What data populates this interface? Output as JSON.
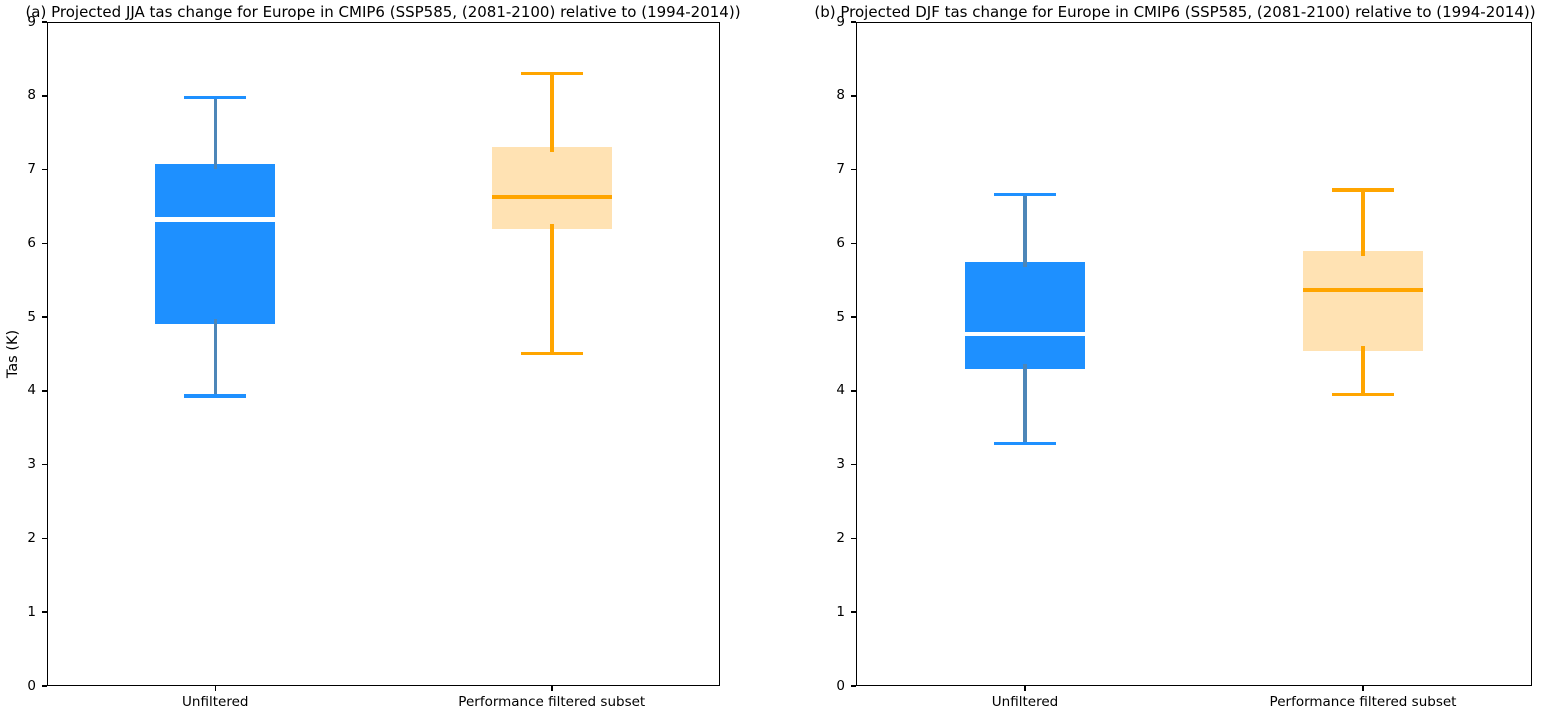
{
  "figure": {
    "background": "#ffffff"
  },
  "chart_data": [
    {
      "type": "box",
      "panel": "a",
      "title": "(a) Projected JJA tas change for Europe in CMIP6 (SSP585, (2081-2100) relative to (1994-2014))",
      "ylabel": "Tas (K)",
      "xlabel": "",
      "ylim": [
        0,
        9
      ],
      "yticks": [
        0,
        1,
        2,
        3,
        4,
        5,
        6,
        7,
        8,
        9
      ],
      "grid": false,
      "categories": [
        "Unfiltered",
        "Performance filtered subset"
      ],
      "series": [
        {
          "name": "Unfiltered",
          "whisker_low": 3.93,
          "q1": 4.9,
          "median": 6.32,
          "q3": 7.07,
          "whisker_high": 7.98,
          "box_fill": "#1e90ff",
          "whisker_color": "#4d86b8",
          "cap_color": "#1e90ff",
          "median_color": "#ffffff"
        },
        {
          "name": "Performance filtered subset",
          "whisker_low": 4.51,
          "q1": 6.19,
          "median": 6.63,
          "q3": 7.3,
          "whisker_high": 8.3,
          "box_fill": "#ffe2b3",
          "whisker_color": "#ffa500",
          "cap_color": "#ffa500",
          "median_color": "#ffa500"
        }
      ]
    },
    {
      "type": "box",
      "panel": "b",
      "title": "(b) Projected DJF tas change for Europe in CMIP6 (SSP585, (2081-2100) relative to (1994-2014))",
      "ylabel": "",
      "xlabel": "",
      "ylim": [
        0,
        9
      ],
      "yticks": [
        0,
        1,
        2,
        3,
        4,
        5,
        6,
        7,
        8,
        9
      ],
      "grid": false,
      "categories": [
        "Unfiltered",
        "Performance filtered subset"
      ],
      "series": [
        {
          "name": "Unfiltered",
          "whisker_low": 3.29,
          "q1": 4.3,
          "median": 4.77,
          "q3": 5.75,
          "whisker_high": 6.66,
          "box_fill": "#1e90ff",
          "whisker_color": "#4d86b8",
          "cap_color": "#1e90ff",
          "median_color": "#ffffff"
        },
        {
          "name": "Performance filtered subset",
          "whisker_low": 3.95,
          "q1": 4.54,
          "median": 5.37,
          "q3": 5.9,
          "whisker_high": 6.72,
          "box_fill": "#ffe2b3",
          "whisker_color": "#ffa500",
          "cap_color": "#ffa500",
          "median_color": "#ffa500"
        }
      ]
    }
  ]
}
